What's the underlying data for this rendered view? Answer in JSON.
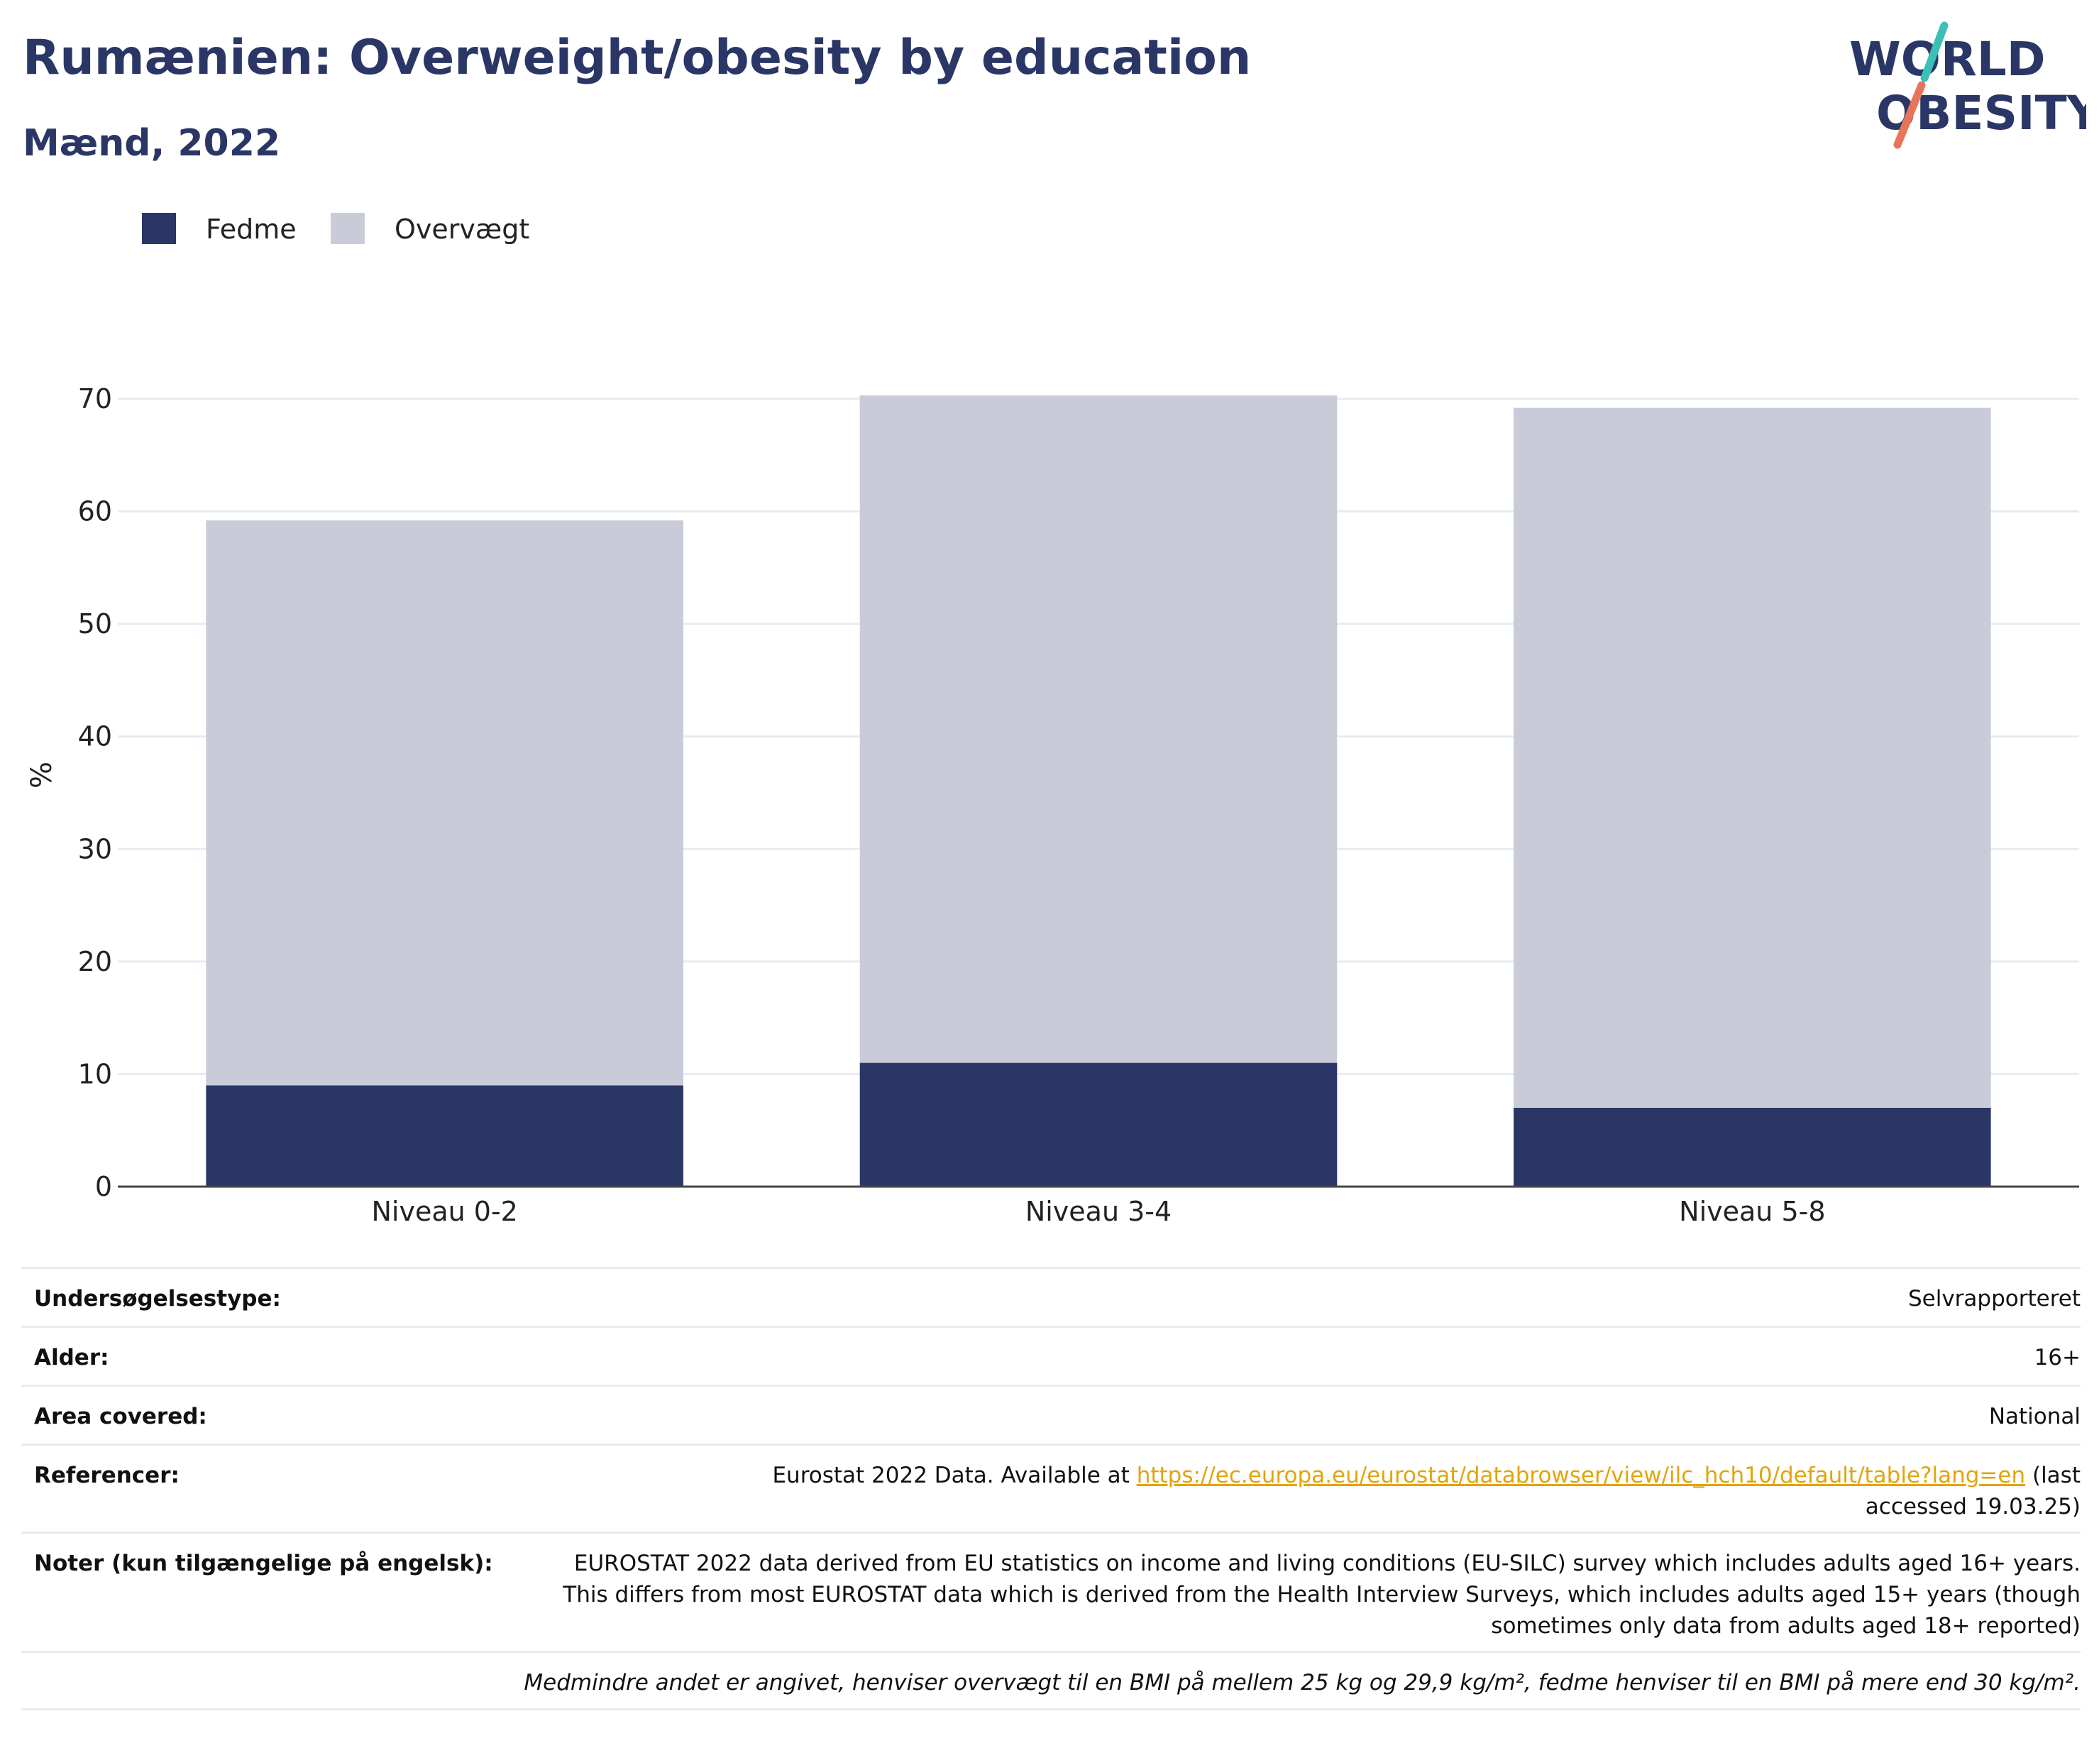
{
  "header": {
    "title": "Rumænien: Overweight/obesity by education",
    "subtitle": "Mænd, 2022"
  },
  "logo": {
    "line1": "WORLD",
    "line2": "OBESITY",
    "colors": {
      "text": "#2a3766",
      "slash_top": "#3bbfb6",
      "slash_bottom": "#e8745c"
    }
  },
  "legend": [
    {
      "label": "Fedme",
      "color": "#2a3766"
    },
    {
      "label": "Overvægt",
      "color": "#c9ccd8"
    }
  ],
  "chart_data": {
    "type": "bar",
    "stacked": true,
    "categories": [
      "Niveau 0-2",
      "Niveau 3-4",
      "Niveau 5-8"
    ],
    "series": [
      {
        "name": "Fedme",
        "values": [
          9,
          11,
          7
        ],
        "color": "#2a3766"
      },
      {
        "name": "Overvægt",
        "values": [
          50.2,
          59.3,
          62.2
        ],
        "color": "#c9ccd8"
      }
    ],
    "ylabel": "%",
    "xlabel": "",
    "ylim": [
      0,
      70
    ],
    "yticks": [
      0,
      10,
      20,
      30,
      40,
      50,
      60,
      70
    ],
    "grid": true,
    "legend_position": "top-left"
  },
  "details": [
    {
      "label": "Undersøgelsestype:",
      "value": "Selvrapporteret"
    },
    {
      "label": "Alder:",
      "value": "16+"
    },
    {
      "label": "Area covered:",
      "value": "National"
    },
    {
      "label": "Referencer:",
      "value_before": "Eurostat 2022 Data. Available at ",
      "link": "https://ec.europa.eu/eurostat/databrowser/view/ilc_hch10/default/table?lang=en",
      "value_after": " (last accessed 19.03.25)"
    },
    {
      "label": "Noter (kun tilgængelige på engelsk):",
      "value": "EUROSTAT 2022 data derived from EU statistics on income and living conditions (EU-SILC) survey which includes adults aged 16+ years. This differs from most EUROSTAT data which is derived from the Health Interview Surveys, which includes adults aged 15+ years (though sometimes only data from adults aged 18+ reported)"
    }
  ],
  "footnote": "Medmindre andet er angivet, henviser overvægt til en BMI på mellem 25 kg og 29,9 kg/m², fedme henviser til en BMI på mere end 30 kg/m²."
}
